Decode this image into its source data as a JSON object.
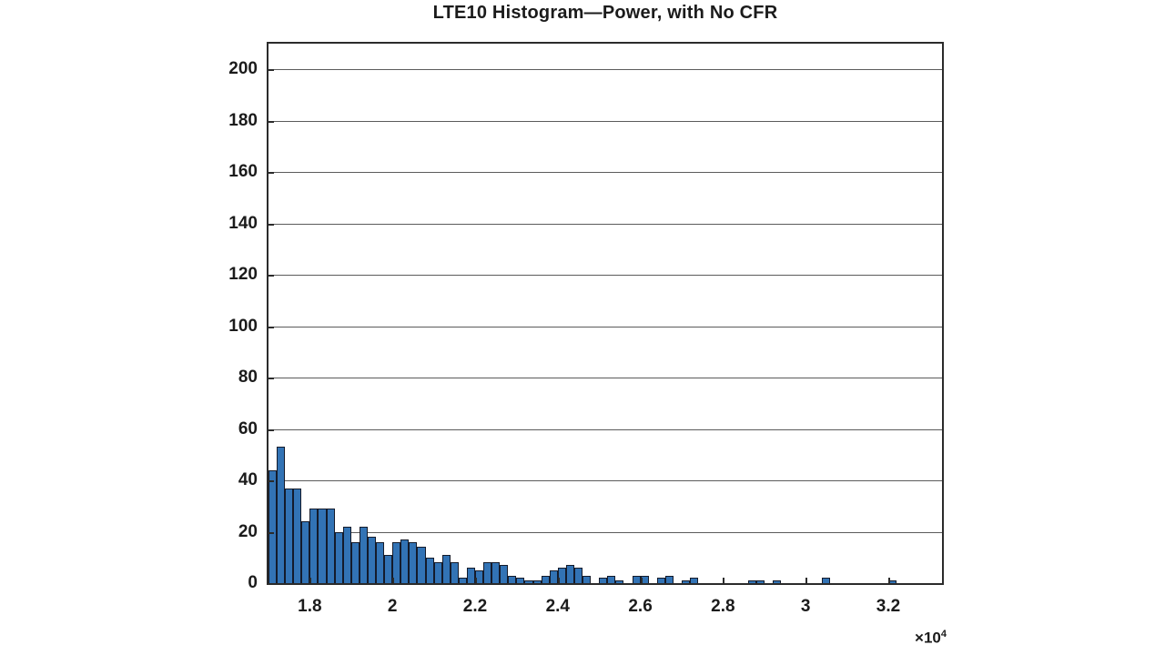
{
  "title": "LTE10 Histogram—Power, with No CFR",
  "axis_multiplier": {
    "base": "×10",
    "exponent": "4"
  },
  "colors": {
    "bar_fill": "#3273b5",
    "bar_edge": "#141b2b",
    "grid": "#5b5b5b",
    "axis_box": "#2b2b2b",
    "text": "#1b1b1b",
    "background": "#ffffff"
  },
  "chart_data": {
    "type": "bar",
    "subtype": "histogram",
    "title": "LTE10 Histogram—Power, with No CFR",
    "xlabel": "",
    "ylabel": "",
    "grid": "horizontal-only",
    "legend": "none",
    "xlim": [
      17000,
      33300
    ],
    "ylim": [
      0,
      210
    ],
    "bin_start": 17000,
    "bin_width": 200,
    "x_scale_note": "x axis labeled in units of 1e4",
    "yticks": [
      {
        "value": 0,
        "label": "0"
      },
      {
        "value": 20,
        "label": "20"
      },
      {
        "value": 40,
        "label": "40"
      },
      {
        "value": 60,
        "label": "60"
      },
      {
        "value": 80,
        "label": "80"
      },
      {
        "value": 100,
        "label": "100"
      },
      {
        "value": 120,
        "label": "120"
      },
      {
        "value": 140,
        "label": "140"
      },
      {
        "value": 160,
        "label": "160"
      },
      {
        "value": 180,
        "label": "180"
      },
      {
        "value": 200,
        "label": "200"
      }
    ],
    "xticks": [
      {
        "value": 18000,
        "label": "1.8"
      },
      {
        "value": 20000,
        "label": "2"
      },
      {
        "value": 22000,
        "label": "2.2"
      },
      {
        "value": 24000,
        "label": "2.4"
      },
      {
        "value": 26000,
        "label": "2.6"
      },
      {
        "value": 28000,
        "label": "2.8"
      },
      {
        "value": 30000,
        "label": "3"
      },
      {
        "value": 32000,
        "label": "3.2"
      }
    ],
    "values": [
      44,
      53,
      37,
      37,
      24,
      29,
      29,
      29,
      20,
      22,
      16,
      22,
      18,
      16,
      11,
      16,
      17,
      16,
      14,
      10,
      8,
      11,
      8,
      2,
      6,
      5,
      8,
      8,
      7,
      3,
      2,
      1,
      1,
      3,
      5,
      6,
      7,
      6,
      3,
      0,
      2,
      3,
      1,
      0,
      3,
      3,
      0,
      2,
      3,
      0,
      1,
      2,
      0,
      0,
      0,
      0,
      0,
      0,
      1,
      1,
      0,
      1,
      0,
      0,
      0,
      0,
      0,
      2,
      0,
      0,
      0,
      0,
      0,
      0,
      0,
      1,
      0,
      0,
      0,
      0,
      0
    ]
  }
}
